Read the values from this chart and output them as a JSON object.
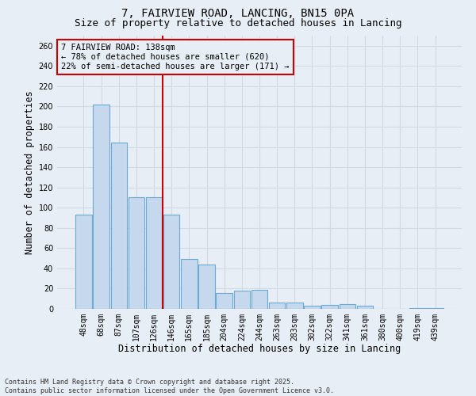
{
  "title_line1": "7, FAIRVIEW ROAD, LANCING, BN15 0PA",
  "title_line2": "Size of property relative to detached houses in Lancing",
  "xlabel": "Distribution of detached houses by size in Lancing",
  "ylabel": "Number of detached properties",
  "bar_color": "#c5d8ee",
  "bar_edge_color": "#6aaad4",
  "categories": [
    "48sqm",
    "68sqm",
    "87sqm",
    "107sqm",
    "126sqm",
    "146sqm",
    "165sqm",
    "185sqm",
    "204sqm",
    "224sqm",
    "244sqm",
    "263sqm",
    "283sqm",
    "302sqm",
    "322sqm",
    "341sqm",
    "361sqm",
    "380sqm",
    "400sqm",
    "419sqm",
    "439sqm"
  ],
  "values": [
    93,
    202,
    164,
    110,
    110,
    93,
    49,
    44,
    16,
    18,
    19,
    6,
    6,
    3,
    4,
    5,
    3,
    0,
    0,
    1,
    1
  ],
  "ylim": [
    0,
    270
  ],
  "yticks": [
    0,
    20,
    40,
    60,
    80,
    100,
    120,
    140,
    160,
    180,
    200,
    220,
    240,
    260
  ],
  "vline_x": 5.0,
  "vline_color": "#cc0000",
  "annotation_text": "7 FAIRVIEW ROAD: 138sqm\n← 78% of detached houses are smaller (620)\n22% of semi-detached houses are larger (171) →",
  "annotation_box_color": "#cc0000",
  "footnote": "Contains HM Land Registry data © Crown copyright and database right 2025.\nContains public sector information licensed under the Open Government Licence v3.0.",
  "bg_color": "#e8eef5",
  "grid_color": "#d0dae5",
  "title_fontsize": 10,
  "subtitle_fontsize": 9,
  "tick_fontsize": 7,
  "label_fontsize": 8.5,
  "footnote_fontsize": 6
}
